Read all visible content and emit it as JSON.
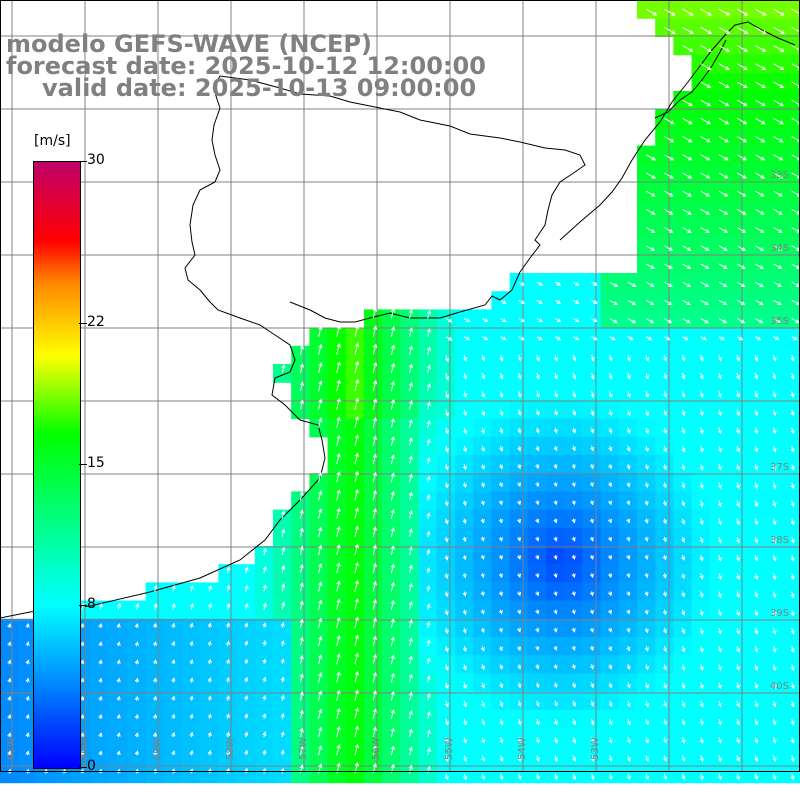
{
  "title": {
    "line1": "modelo GEFS-WAVE (NCEP)",
    "line2": "forecast date: 2025-10-12 12:00:00",
    "line3": "valid date: 2025-10-13 09:00:00"
  },
  "colorbar": {
    "unit": "[m/s]",
    "ticks": [
      {
        "label": "30",
        "value": 30
      },
      {
        "label": "22",
        "value": 22
      },
      {
        "label": "15",
        "value": 15
      },
      {
        "label": "8",
        "value": 8
      },
      {
        "label": "0",
        "value": 0
      }
    ],
    "max": 30
  },
  "map": {
    "lon_labels": [
      "61W",
      "60W",
      "59W",
      "58W",
      "57W",
      "56W",
      "55W",
      "54W",
      "53W"
    ],
    "lat_labels": [
      "33S",
      "34S",
      "35S",
      "37S",
      "38S",
      "39S",
      "40S"
    ],
    "colors": {
      "land": "#ffffff",
      "grid": "#808080",
      "coast": "#000000",
      "arrows": "#ffffff"
    }
  }
}
